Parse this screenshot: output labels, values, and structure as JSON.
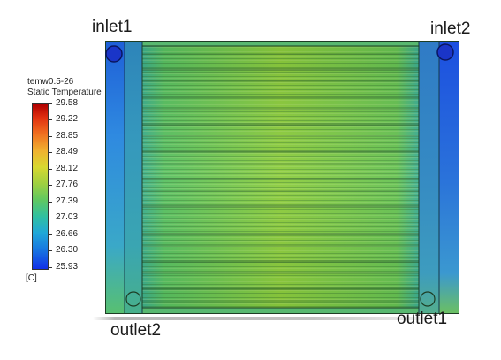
{
  "labels": {
    "inlet1": "inlet1",
    "inlet2": "inlet2",
    "outlet1": "outlet1",
    "outlet2": "outlet2"
  },
  "legend": {
    "title_line1": "temw0.5-26",
    "title_line2": "Static Temperature",
    "ticks": [
      "29.58",
      "29.22",
      "28.85",
      "28.49",
      "28.12",
      "27.76",
      "27.39",
      "27.03",
      "26.66",
      "26.30",
      "25.93"
    ],
    "unit": "[C]"
  },
  "colors": {
    "max": "#b00000",
    "mid": "#8ccc3c",
    "min": "#1030e8",
    "core_green": "#6cc63a",
    "header_blue": "#2a7ad8"
  }
}
